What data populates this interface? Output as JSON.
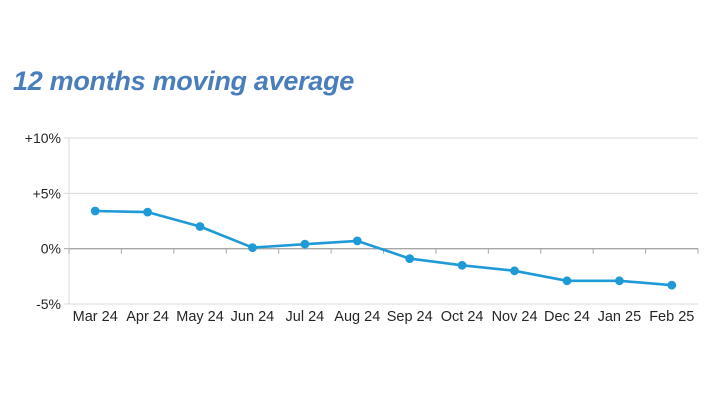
{
  "title": "12 months moving average",
  "colors": {
    "title": "#4A7EBB",
    "line": "#1F9AD6",
    "marker": "#1F9AD6",
    "gridline": "#D9D9D9",
    "zero_axis": "#A6A6A6",
    "axis_text": "#262626",
    "background": "#FFFFFF"
  },
  "chart_data": {
    "type": "line",
    "title": "12 months moving average",
    "categories": [
      "Mar 24",
      "Apr 24",
      "May 24",
      "Jun 24",
      "Jul 24",
      "Aug 24",
      "Sep 24",
      "Oct 24",
      "Nov 24",
      "Dec 24",
      "Jan 25",
      "Feb 25"
    ],
    "series": [
      {
        "name": "12 months moving average",
        "values": [
          3.4,
          3.3,
          2.0,
          0.1,
          0.4,
          0.7,
          -0.9,
          -1.5,
          -2.0,
          -2.9,
          -2.9,
          -3.3
        ]
      }
    ],
    "xlabel": "",
    "ylabel": "",
    "ylim": [
      -5,
      10
    ],
    "yticks": [
      {
        "value": 10,
        "label": "+10%"
      },
      {
        "value": 5,
        "label": "+5%"
      },
      {
        "value": 0,
        "label": "0%"
      },
      {
        "value": -5,
        "label": "-5%"
      }
    ],
    "grid": true,
    "legend": false,
    "marker": "circle"
  }
}
